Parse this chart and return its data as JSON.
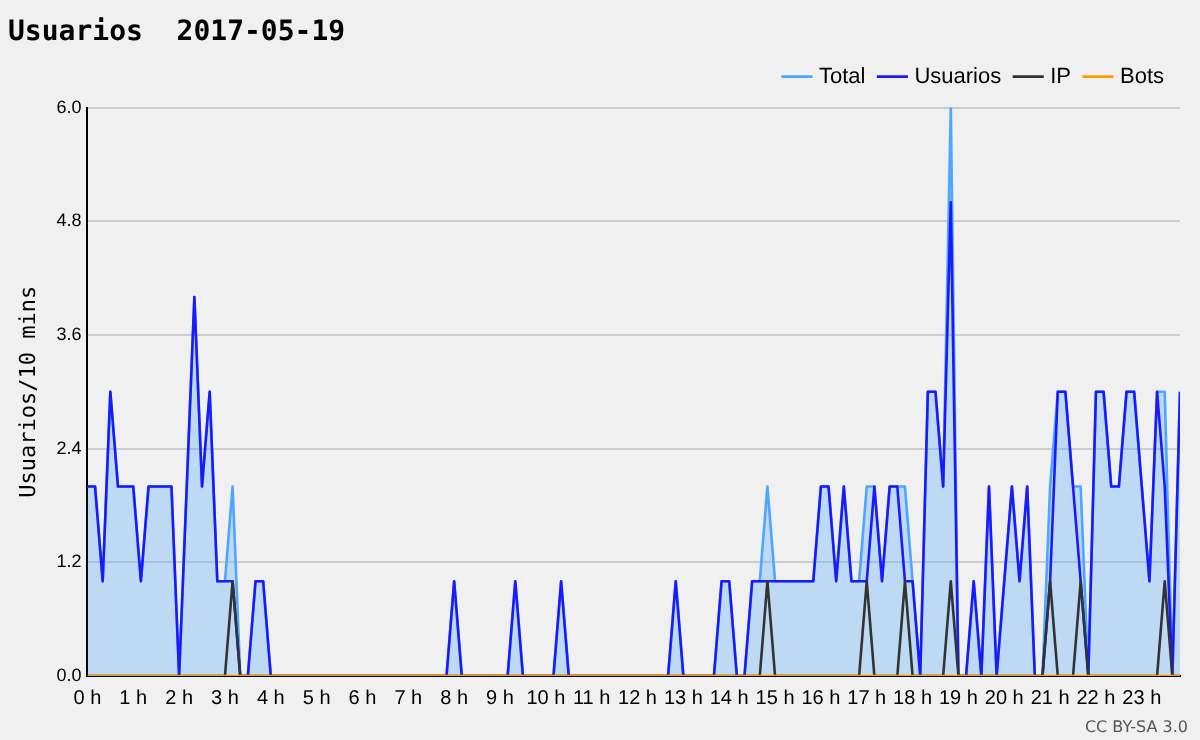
{
  "chart_data": {
    "type": "line",
    "title": "Usuarios  2017-05-19",
    "ylabel": "Usuarios/10 mins",
    "annotations": [
      "CC BY-SA 3.0"
    ],
    "x": [
      0,
      0.1667,
      0.3333,
      0.5,
      0.6667,
      0.8333,
      1,
      1.1667,
      1.3333,
      1.5,
      1.6667,
      1.8333,
      2,
      2.1667,
      2.3333,
      2.5,
      2.6667,
      2.8333,
      3,
      3.1667,
      3.3333,
      3.5,
      3.6667,
      3.8333,
      4,
      4.1667,
      4.3333,
      4.5,
      4.6667,
      4.8333,
      5,
      5.1667,
      5.3333,
      5.5,
      5.6667,
      5.8333,
      6,
      6.1667,
      6.3333,
      6.5,
      6.6667,
      6.8333,
      7,
      7.1667,
      7.3333,
      7.5,
      7.6667,
      7.8333,
      8,
      8.1667,
      8.3333,
      8.5,
      8.6667,
      8.8333,
      9,
      9.1667,
      9.3333,
      9.5,
      9.6667,
      9.8333,
      10,
      10.1667,
      10.3333,
      10.5,
      10.6667,
      10.8333,
      11,
      11.1667,
      11.3333,
      11.5,
      11.6667,
      11.8333,
      12,
      12.1667,
      12.3333,
      12.5,
      12.6667,
      12.8333,
      13,
      13.1667,
      13.3333,
      13.5,
      13.6667,
      13.8333,
      14,
      14.1667,
      14.3333,
      14.5,
      14.6667,
      14.8333,
      15,
      15.1667,
      15.3333,
      15.5,
      15.6667,
      15.8333,
      16,
      16.1667,
      16.3333,
      16.5,
      16.6667,
      16.8333,
      17,
      17.1667,
      17.3333,
      17.5,
      17.6667,
      17.8333,
      18,
      18.1667,
      18.3333,
      18.5,
      18.6667,
      18.8333,
      19,
      19.1667,
      19.3333,
      19.5,
      19.6667,
      19.8333,
      20,
      20.1667,
      20.3333,
      20.5,
      20.6667,
      20.8333,
      21,
      21.1667,
      21.3333,
      21.5,
      21.6667,
      21.8333,
      22,
      22.1667,
      22.3333,
      22.5,
      22.6667,
      22.8333,
      23,
      23.1667,
      23.3333,
      23.5,
      23.6667,
      23.8333
    ],
    "series": [
      {
        "name": "Total",
        "type": "area",
        "color": "#4da6ff",
        "values": [
          2,
          2,
          1,
          3,
          2,
          2,
          2,
          1,
          2,
          2,
          2,
          2,
          0,
          2,
          4,
          2,
          3,
          1,
          1,
          2,
          0,
          0,
          1,
          1,
          0,
          0,
          0,
          0,
          0,
          0,
          0,
          0,
          0,
          0,
          0,
          0,
          0,
          0,
          0,
          0,
          0,
          0,
          0,
          0,
          0,
          0,
          0,
          0,
          1,
          0,
          0,
          0,
          0,
          0,
          0,
          0,
          1,
          0,
          0,
          0,
          0,
          0,
          1,
          0,
          0,
          0,
          0,
          0,
          0,
          0,
          0,
          0,
          0,
          0,
          0,
          0,
          0,
          1,
          0,
          0,
          0,
          0,
          0,
          1,
          1,
          0,
          0,
          1,
          1,
          2,
          1,
          1,
          1,
          1,
          1,
          1,
          2,
          2,
          1,
          2,
          1,
          1,
          2,
          2,
          1,
          2,
          2,
          2,
          1,
          0,
          3,
          3,
          2,
          6,
          0,
          0,
          1,
          0,
          2,
          0,
          1,
          2,
          1,
          2,
          0,
          0,
          2,
          3,
          3,
          2,
          2,
          0,
          3,
          3,
          2,
          2,
          3,
          3,
          2,
          1,
          3,
          3,
          0,
          3
        ]
      },
      {
        "name": "Usuarios",
        "type": "line",
        "color": "#1a1aff",
        "values": [
          2,
          2,
          1,
          3,
          2,
          2,
          2,
          1,
          2,
          2,
          2,
          2,
          0,
          2,
          4,
          2,
          3,
          1,
          1,
          1,
          0,
          0,
          1,
          1,
          0,
          0,
          0,
          0,
          0,
          0,
          0,
          0,
          0,
          0,
          0,
          0,
          0,
          0,
          0,
          0,
          0,
          0,
          0,
          0,
          0,
          0,
          0,
          0,
          1,
          0,
          0,
          0,
          0,
          0,
          0,
          0,
          1,
          0,
          0,
          0,
          0,
          0,
          1,
          0,
          0,
          0,
          0,
          0,
          0,
          0,
          0,
          0,
          0,
          0,
          0,
          0,
          0,
          1,
          0,
          0,
          0,
          0,
          0,
          1,
          1,
          0,
          0,
          1,
          1,
          1,
          1,
          1,
          1,
          1,
          1,
          1,
          2,
          2,
          1,
          2,
          1,
          1,
          1,
          2,
          1,
          2,
          2,
          1,
          1,
          0,
          3,
          3,
          2,
          5,
          0,
          0,
          1,
          0,
          2,
          0,
          1,
          2,
          1,
          2,
          0,
          0,
          1,
          3,
          3,
          2,
          1,
          0,
          3,
          3,
          2,
          2,
          3,
          3,
          2,
          1,
          3,
          2,
          0,
          3
        ]
      },
      {
        "name": "IP",
        "type": "line",
        "color": "#333333",
        "values": [
          0,
          0,
          0,
          0,
          0,
          0,
          0,
          0,
          0,
          0,
          0,
          0,
          0,
          0,
          0,
          0,
          0,
          0,
          0,
          1,
          0,
          0,
          0,
          0,
          0,
          0,
          0,
          0,
          0,
          0,
          0,
          0,
          0,
          0,
          0,
          0,
          0,
          0,
          0,
          0,
          0,
          0,
          0,
          0,
          0,
          0,
          0,
          0,
          0,
          0,
          0,
          0,
          0,
          0,
          0,
          0,
          0,
          0,
          0,
          0,
          0,
          0,
          0,
          0,
          0,
          0,
          0,
          0,
          0,
          0,
          0,
          0,
          0,
          0,
          0,
          0,
          0,
          0,
          0,
          0,
          0,
          0,
          0,
          0,
          0,
          0,
          0,
          0,
          0,
          1,
          0,
          0,
          0,
          0,
          0,
          0,
          0,
          0,
          0,
          0,
          0,
          0,
          1,
          0,
          0,
          0,
          0,
          1,
          0,
          0,
          0,
          0,
          0,
          1,
          0,
          0,
          0,
          0,
          0,
          0,
          0,
          0,
          0,
          0,
          0,
          0,
          1,
          0,
          0,
          0,
          1,
          0,
          0,
          0,
          0,
          0,
          0,
          0,
          0,
          0,
          0,
          1,
          0,
          0
        ]
      },
      {
        "name": "Bots",
        "type": "line",
        "color": "#ff9900",
        "values": [
          0,
          0,
          0,
          0,
          0,
          0,
          0,
          0,
          0,
          0,
          0,
          0,
          0,
          0,
          0,
          0,
          0,
          0,
          0,
          0,
          0,
          0,
          0,
          0,
          0,
          0,
          0,
          0,
          0,
          0,
          0,
          0,
          0,
          0,
          0,
          0,
          0,
          0,
          0,
          0,
          0,
          0,
          0,
          0,
          0,
          0,
          0,
          0,
          0,
          0,
          0,
          0,
          0,
          0,
          0,
          0,
          0,
          0,
          0,
          0,
          0,
          0,
          0,
          0,
          0,
          0,
          0,
          0,
          0,
          0,
          0,
          0,
          0,
          0,
          0,
          0,
          0,
          0,
          0,
          0,
          0,
          0,
          0,
          0,
          0,
          0,
          0,
          0,
          0,
          0,
          0,
          0,
          0,
          0,
          0,
          0,
          0,
          0,
          0,
          0,
          0,
          0,
          0,
          0,
          0,
          0,
          0,
          0,
          0,
          0,
          0,
          0,
          0,
          0,
          0,
          0,
          0,
          0,
          0,
          0,
          0,
          0,
          0,
          0,
          0,
          0,
          0,
          0,
          0,
          0,
          0,
          0,
          0,
          0,
          0,
          0,
          0,
          0,
          0,
          0,
          0,
          0,
          0,
          0
        ]
      }
    ],
    "xlim": [
      0,
      23.8333
    ],
    "xticks": [
      {
        "value": 0,
        "label": "0 h"
      },
      {
        "value": 1,
        "label": "1 h"
      },
      {
        "value": 2,
        "label": "2 h"
      },
      {
        "value": 3,
        "label": "3 h"
      },
      {
        "value": 4,
        "label": "4 h"
      },
      {
        "value": 5,
        "label": "5 h"
      },
      {
        "value": 6,
        "label": "6 h"
      },
      {
        "value": 7,
        "label": "7 h"
      },
      {
        "value": 8,
        "label": "8 h"
      },
      {
        "value": 9,
        "label": "9 h"
      },
      {
        "value": 10,
        "label": "10 h"
      },
      {
        "value": 11,
        "label": "11 h"
      },
      {
        "value": 12,
        "label": "12 h"
      },
      {
        "value": 13,
        "label": "13 h"
      },
      {
        "value": 14,
        "label": "14 h"
      },
      {
        "value": 15,
        "label": "15 h"
      },
      {
        "value": 16,
        "label": "16 h"
      },
      {
        "value": 17,
        "label": "17 h"
      },
      {
        "value": 18,
        "label": "18 h"
      },
      {
        "value": 19,
        "label": "19 h"
      },
      {
        "value": 20,
        "label": "20 h"
      },
      {
        "value": 21,
        "label": "21 h"
      },
      {
        "value": 22,
        "label": "22 h"
      },
      {
        "value": 23,
        "label": "23 h"
      }
    ],
    "ylim": [
      0,
      6
    ],
    "yticks": [
      {
        "value": 0,
        "label": "0.0"
      },
      1.2,
      2.4,
      3.6,
      4.8,
      {
        "value": 6,
        "label": "6.0"
      }
    ],
    "grid": "y",
    "legend": "top right"
  }
}
